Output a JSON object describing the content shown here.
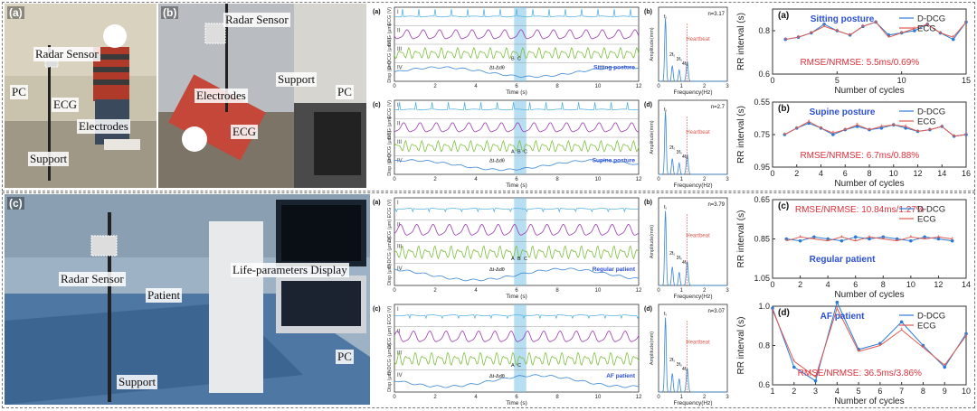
{
  "photos": {
    "a": {
      "label": "(a)",
      "annotations": [
        "Radar Sensor",
        "PC",
        "ECG",
        "Electrodes",
        "Support"
      ]
    },
    "b": {
      "label": "(b)",
      "annotations": [
        "Radar Sensor",
        "Electrodes",
        "Support",
        "PC",
        "ECG"
      ]
    },
    "c": {
      "label": "(c)",
      "annotations": [
        "Radar Sensor",
        "Patient",
        "Life-parameters Display",
        "PC",
        "Support"
      ]
    }
  },
  "waveform_panels": [
    {
      "label": "(a)",
      "spectrum_label": "(b)",
      "condition": "Sitting posture",
      "n_text": "n=3.17",
      "marks": [
        "B",
        "C"
      ],
      "deltas": "Δt-Δdθ"
    },
    {
      "label": "(c)",
      "spectrum_label": "(d)",
      "condition": "Supine posture",
      "n_text": "n=2.7",
      "marks": [
        "A",
        "B",
        "C"
      ],
      "deltas": "Δt-Δdθ"
    },
    {
      "label": "(a)",
      "spectrum_label": "(b)",
      "condition": "Regular patient",
      "n_text": "n=3.79",
      "marks": [
        "A",
        "B",
        "C"
      ],
      "deltas": "Δt-Δdθ"
    },
    {
      "label": "(c)",
      "spectrum_label": "(d)",
      "condition": "AF patient",
      "n_text": "n=3.07",
      "marks": [
        "A",
        "C"
      ],
      "deltas": "Δt-Δdθ"
    }
  ],
  "waveform_common": {
    "row_labels": [
      "I",
      "II",
      "III",
      "IV"
    ],
    "y_labels": [
      "ECG (V)",
      "DCG (μm)",
      "D-DCG (μm/s)",
      "Disp (μm)"
    ],
    "xlabel": "Time (s)",
    "xticks": [
      "0",
      "2",
      "4",
      "6",
      "8",
      "10",
      "12"
    ],
    "spec_xlabel": "Frequency(Hz)",
    "spec_ylabel": "Amplitude(mm)",
    "spec_xticks": [
      "0",
      "1",
      "2",
      "3"
    ],
    "heartbeat": "Heartbeat",
    "harmonics": [
      "f₀",
      "2f₀",
      "3f₀",
      "4f₀"
    ]
  },
  "colors": {
    "ddcg": "#2b7bd6",
    "ecg": "#e05a4e",
    "trace_ecg": "#5ab4e0",
    "trace_dcg": "#9b3bb0",
    "trace_ddcg": "#7fbf3f",
    "trace_disp": "#3a86d4",
    "rmse_text": "#e0303a",
    "title_blue": "#2a4fd6"
  },
  "chart_data": [
    {
      "type": "line",
      "panel_label": "(a)",
      "title": "Sitting posture",
      "xlabel": "Number of cycles",
      "ylabel": "RR interval (s)",
      "xlim": [
        0,
        15
      ],
      "xticks": [
        0,
        5,
        10,
        15
      ],
      "ylim": [
        0.6,
        0.9
      ],
      "yticks": [
        0.6,
        0.8
      ],
      "yticklabels": [
        "0.6",
        "0.8"
      ],
      "yinvert": false,
      "annotation": "RMSE/NRMSE: 5.5ms/0.69%",
      "x": [
        1,
        2,
        3,
        4,
        5,
        6,
        7,
        8,
        9,
        10,
        11,
        12,
        13,
        14,
        15
      ],
      "series": [
        {
          "name": "D-DCG",
          "values": [
            0.76,
            0.77,
            0.79,
            0.83,
            0.8,
            0.78,
            0.82,
            0.84,
            0.78,
            0.79,
            0.8,
            0.83,
            0.79,
            0.76,
            0.84
          ]
        },
        {
          "name": "ECG",
          "values": [
            0.76,
            0.77,
            0.79,
            0.82,
            0.8,
            0.78,
            0.82,
            0.84,
            0.77,
            0.79,
            0.81,
            0.83,
            0.79,
            0.77,
            0.84
          ]
        }
      ]
    },
    {
      "type": "line",
      "panel_label": "(b)",
      "title": "Supine posture",
      "xlabel": "Number of cycles",
      "ylabel": "RR interval (s)",
      "xlim": [
        0,
        16
      ],
      "xticks": [
        0,
        2,
        4,
        6,
        8,
        10,
        12,
        14,
        16
      ],
      "ylim": [
        0.55,
        0.95
      ],
      "yticks": [
        0.55,
        0.75,
        0.95
      ],
      "yticklabels": [
        "0.55",
        "0.75",
        "0.95"
      ],
      "yinvert": true,
      "annotation": "RMSE/NRMSE: 6.7ms/0.88%",
      "x": [
        1,
        2,
        3,
        4,
        5,
        6,
        7,
        8,
        9,
        10,
        11,
        12,
        13,
        14,
        15,
        16
      ],
      "series": [
        {
          "name": "D-DCG",
          "values": [
            0.75,
            0.71,
            0.68,
            0.71,
            0.75,
            0.72,
            0.7,
            0.72,
            0.71,
            0.69,
            0.71,
            0.73,
            0.72,
            0.7,
            0.76,
            0.75
          ]
        },
        {
          "name": "ECG",
          "values": [
            0.75,
            0.71,
            0.67,
            0.71,
            0.74,
            0.72,
            0.69,
            0.72,
            0.7,
            0.69,
            0.7,
            0.73,
            0.72,
            0.7,
            0.76,
            0.75
          ]
        }
      ]
    },
    {
      "type": "line",
      "panel_label": "(c)",
      "title": "Regular patient",
      "xlabel": "Number of cycles",
      "ylabel": "RR interval (s)",
      "xlim": [
        0,
        14
      ],
      "xticks": [
        0,
        2,
        4,
        6,
        8,
        10,
        12,
        14
      ],
      "ylim": [
        0.65,
        1.05
      ],
      "yticks": [
        0.65,
        0.85,
        1.05
      ],
      "yticklabels": [
        "0.65",
        "0.85",
        "1.05"
      ],
      "yinvert": true,
      "annotation": "RMSE/NRMSE: 10.84ms/1.27%",
      "x": [
        1,
        2,
        3,
        4,
        5,
        6,
        7,
        8,
        9,
        10,
        11,
        12,
        13
      ],
      "series": [
        {
          "name": "D-DCG",
          "values": [
            0.85,
            0.86,
            0.84,
            0.85,
            0.86,
            0.84,
            0.85,
            0.84,
            0.85,
            0.86,
            0.84,
            0.85,
            0.86
          ]
        },
        {
          "name": "ECG",
          "values": [
            0.86,
            0.84,
            0.85,
            0.86,
            0.84,
            0.86,
            0.84,
            0.85,
            0.86,
            0.84,
            0.85,
            0.84,
            0.85
          ]
        }
      ]
    },
    {
      "type": "line",
      "panel_label": "(d)",
      "title": "AF patient",
      "xlabel": "Number of cycles",
      "ylabel": "RR interval (s)",
      "xlim": [
        1,
        10
      ],
      "xticks": [
        1,
        2,
        3,
        4,
        5,
        6,
        7,
        8,
        9,
        10
      ],
      "ylim": [
        0.6,
        1.0
      ],
      "yticks": [
        0.6,
        0.8,
        1.0
      ],
      "yticklabels": [
        "0.6",
        "0.8",
        "1.0"
      ],
      "yinvert": false,
      "annotation": "RMSE/NRMSE: 36.5ms/3.86%",
      "x": [
        1,
        2,
        3,
        4,
        5,
        6,
        7,
        8,
        9,
        10
      ],
      "series": [
        {
          "name": "D-DCG",
          "values": [
            0.99,
            0.69,
            0.62,
            1.02,
            0.78,
            0.81,
            0.92,
            0.8,
            0.69,
            0.86
          ]
        },
        {
          "name": "ECG",
          "values": [
            0.98,
            0.72,
            0.64,
            0.99,
            0.77,
            0.8,
            0.88,
            0.79,
            0.7,
            0.85
          ]
        }
      ]
    }
  ]
}
